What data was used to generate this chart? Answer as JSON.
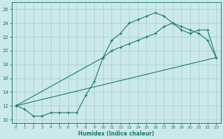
{
  "xlabel": "Humidex (Indice chaleur)",
  "bg_color": "#cce9e9",
  "grid_color": "#aacfcf",
  "line_color": "#1a7a6a",
  "xlim": [
    -0.5,
    23.5
  ],
  "ylim": [
    9.5,
    27
  ],
  "xticks": [
    0,
    1,
    2,
    3,
    4,
    5,
    6,
    7,
    8,
    9,
    10,
    11,
    12,
    13,
    14,
    15,
    16,
    17,
    18,
    19,
    20,
    21,
    22,
    23
  ],
  "yticks": [
    10,
    12,
    14,
    16,
    18,
    20,
    22,
    24,
    26
  ],
  "line1_x": [
    0,
    1,
    2,
    3,
    4,
    5,
    6,
    7,
    8,
    9,
    10,
    11,
    12,
    13,
    14,
    15,
    16,
    17,
    18,
    19,
    20,
    21,
    22,
    23
  ],
  "line1_y": [
    12,
    11.5,
    10.5,
    10.5,
    11,
    11,
    11,
    11,
    13.5,
    15.5,
    19,
    21.5,
    22.5,
    24,
    24.5,
    25,
    25.5,
    25,
    24,
    23.5,
    23,
    22.5,
    21.5,
    19
  ],
  "line2_x": [
    0,
    10,
    11,
    12,
    13,
    14,
    15,
    16,
    17,
    18,
    19,
    20,
    21,
    22,
    23
  ],
  "line2_y": [
    12,
    19,
    20,
    20.5,
    21,
    21.5,
    22,
    22.5,
    23.5,
    24,
    23,
    22.5,
    23,
    23,
    19
  ],
  "line3_x": [
    0,
    23
  ],
  "line3_y": [
    12,
    19
  ]
}
